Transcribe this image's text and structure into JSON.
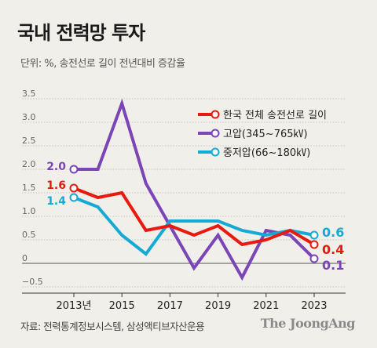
{
  "title": "국내 전력망 투자",
  "subtitle": "단위: %, 송전선로 길이 전년대비 증감율",
  "source": "자료: 전력통계정보시스템, 삼성액티브자산운용",
  "brand": "The JoongAng",
  "chart_data": {
    "type": "line",
    "x": [
      2013,
      2014,
      2015,
      2016,
      2017,
      2018,
      2019,
      2020,
      2021,
      2022,
      2023
    ],
    "x_tick_labels": [
      {
        "x": 2013,
        "label": "2013년"
      },
      {
        "x": 2015,
        "label": "2015"
      },
      {
        "x": 2017,
        "label": "2017"
      },
      {
        "x": 2019,
        "label": "2019"
      },
      {
        "x": 2021,
        "label": "2021"
      },
      {
        "x": 2023,
        "label": "2023"
      }
    ],
    "y_ticks": [
      "3.5",
      "3.0",
      "2.5",
      "2.0",
      "1.5",
      "1.0",
      "0.5",
      "0",
      "−0.5"
    ],
    "ylim": [
      -0.5,
      3.5
    ],
    "grid": true,
    "legend_position": "top-right",
    "series": [
      {
        "name": "한국 전체 송전선로 길이",
        "color": "#e8190f",
        "values": [
          1.6,
          1.4,
          1.5,
          0.7,
          0.8,
          0.6,
          0.8,
          0.4,
          0.5,
          0.7,
          0.4
        ],
        "start_label": "1.6",
        "end_label": "0.4"
      },
      {
        "name": "고압(345~765㎸)",
        "color": "#7b45b8",
        "values": [
          2.0,
          2.0,
          3.4,
          1.7,
          0.8,
          -0.1,
          0.6,
          -0.3,
          0.7,
          0.6,
          0.1
        ],
        "start_label": "2.0",
        "end_label": "0.1"
      },
      {
        "name": "중저압(66~180㎸)",
        "color": "#13aad6",
        "values": [
          1.4,
          1.2,
          0.6,
          0.2,
          0.9,
          0.9,
          0.9,
          0.7,
          0.6,
          0.7,
          0.6
        ],
        "start_label": "1.4",
        "end_label": "0.6"
      }
    ]
  }
}
